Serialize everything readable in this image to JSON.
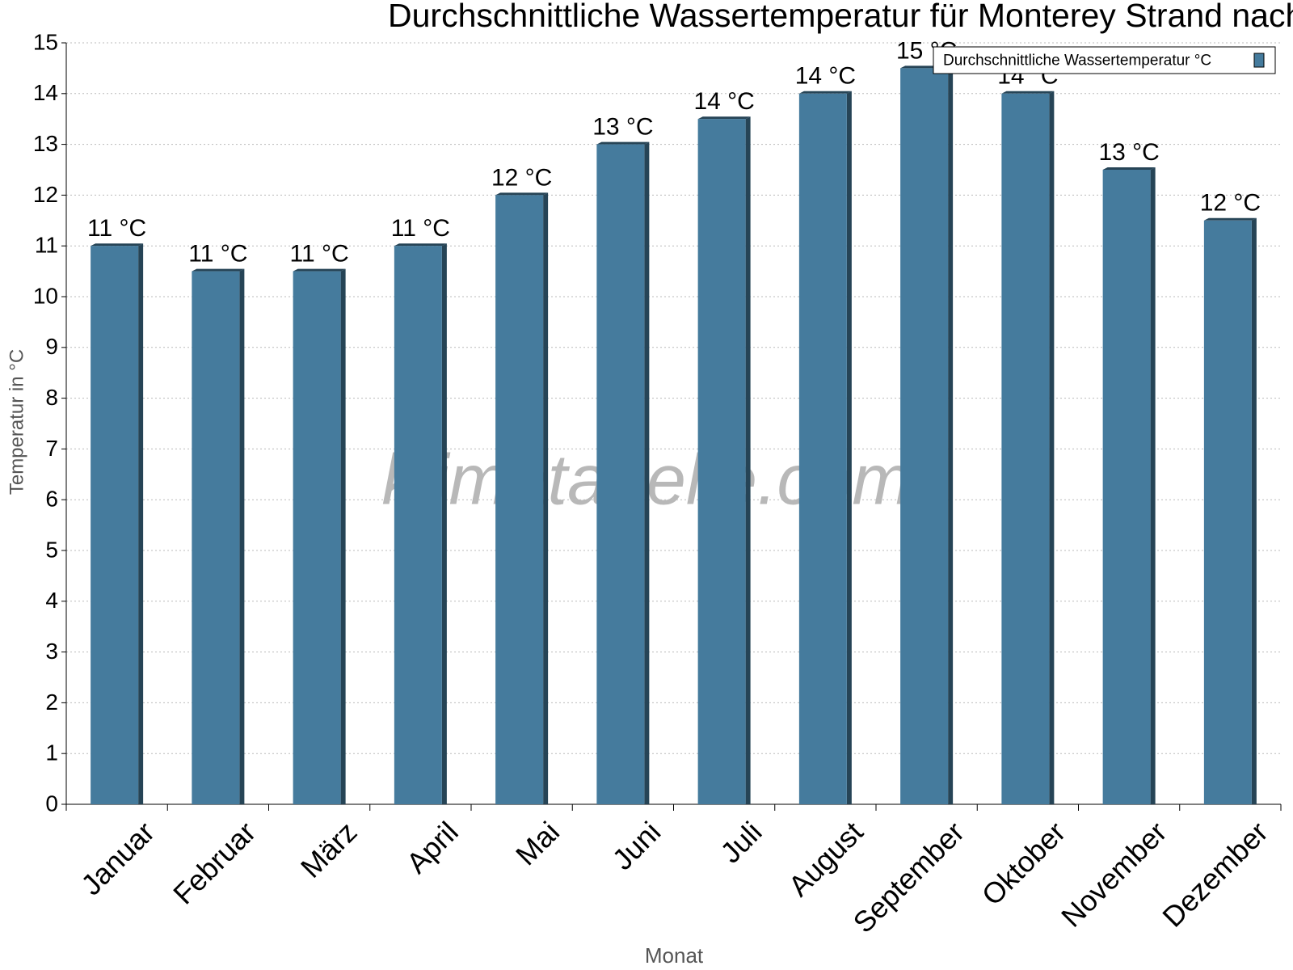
{
  "chart_data": {
    "type": "bar",
    "title": "Durchschnittliche Wassertemperatur für Monterey Strand nach Monat",
    "watermark": "klimatabelle.com",
    "x_label": "Monat",
    "y_label": "Temperatur in °C",
    "categories": [
      "Januar",
      "Februar",
      "März",
      "April",
      "Mai",
      "Juni",
      "Juli",
      "August",
      "September",
      "Oktober",
      "November",
      "Dezember"
    ],
    "series": [
      {
        "name": "Durchschnittliche Wassertemperatur °C",
        "color": "#457b9d",
        "values": [
          11,
          10.5,
          10.5,
          11,
          12,
          13,
          13.5,
          14,
          14.5,
          14,
          12.5,
          11.5
        ],
        "value_labels": [
          "11 °C",
          "11 °C",
          "11 °C",
          "11 °C",
          "12 °C",
          "13 °C",
          "14 °C",
          "14 °C",
          "15 °C",
          "14 °C",
          "13 °C",
          "12 °C"
        ]
      }
    ],
    "ylim": [
      0,
      15
    ],
    "yticks": [
      0,
      1,
      2,
      3,
      4,
      5,
      6,
      7,
      8,
      9,
      10,
      11,
      12,
      13,
      14,
      15
    ],
    "grid": true,
    "legend": "top-right"
  }
}
